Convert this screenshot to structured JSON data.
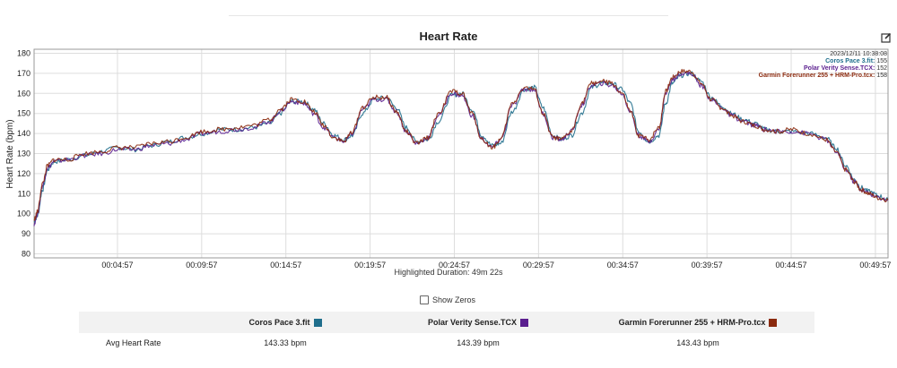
{
  "chart_data": {
    "type": "line",
    "title": "Heart Rate",
    "ylabel": "Heart Rate (bpm)",
    "xlabel": "Highlighted Duration: 49m 22s",
    "ylim": [
      78,
      182
    ],
    "xlim_minutes": [
      0,
      50.7
    ],
    "yticks": [
      80,
      90,
      100,
      110,
      120,
      130,
      140,
      150,
      160,
      170,
      180
    ],
    "xticks": [
      {
        "t": 4.95,
        "label": "00:04:57"
      },
      {
        "t": 9.95,
        "label": "00:09:57"
      },
      {
        "t": 14.95,
        "label": "00:14:57"
      },
      {
        "t": 19.95,
        "label": "00:19:57"
      },
      {
        "t": 24.95,
        "label": "00:24:57"
      },
      {
        "t": 29.95,
        "label": "00:29:57"
      },
      {
        "t": 34.95,
        "label": "00:34:57"
      },
      {
        "t": 39.95,
        "label": "00:39:57"
      },
      {
        "t": 44.95,
        "label": "00:44:57"
      },
      {
        "t": 49.95,
        "label": "00:49:57"
      }
    ],
    "grid": true,
    "legend_position": "top-right",
    "legend_date": "2023/12/11 10:38:08",
    "series": [
      {
        "name": "Coros Pace 3.fit",
        "legend_value": "155",
        "color": "#1f6e8c",
        "t": [
          0,
          0.2,
          0.5,
          0.8,
          1.2,
          2,
          3,
          4,
          5,
          6,
          7,
          8,
          9,
          10,
          11,
          12,
          13,
          14,
          14.6,
          15.3,
          16,
          16.6,
          17.2,
          17.8,
          18.4,
          18.9,
          19.5,
          20.2,
          20.9,
          21.5,
          22.1,
          22.7,
          23.4,
          24,
          24.8,
          25.4,
          26,
          26.6,
          27.2,
          27.7,
          28.4,
          29.1,
          29.7,
          30.2,
          30.8,
          31.3,
          31.9,
          32.5,
          33.1,
          33.7,
          34.3,
          34.9,
          35.4,
          35.9,
          36.5,
          37.1,
          37.5,
          37.9,
          38.4,
          39,
          39.6,
          40.2,
          40.8,
          41.4,
          42.1,
          42.8,
          43.4,
          44.2,
          45,
          46,
          47,
          47.6,
          48.2,
          48.7,
          49.1,
          49.6,
          50.1,
          50.7
        ],
        "values": [
          96,
          99,
          112,
          122,
          126,
          127,
          129,
          131,
          133,
          132,
          134,
          136,
          138,
          140,
          142,
          142,
          143,
          145,
          150,
          156,
          156,
          152,
          145,
          139,
          137,
          139,
          150,
          157,
          158,
          153,
          143,
          136,
          137,
          146,
          159,
          160,
          152,
          139,
          134,
          135,
          151,
          162,
          163,
          153,
          139,
          137,
          139,
          150,
          163,
          165,
          165,
          162,
          155,
          141,
          136,
          139,
          155,
          165,
          169,
          170,
          166,
          158,
          154,
          150,
          147,
          145,
          142,
          141,
          141,
          140,
          138,
          133,
          124,
          117,
          113,
          111,
          109,
          107
        ]
      },
      {
        "name": "Polar Verity Sense.TCX",
        "legend_value": "152",
        "color": "#5b1f8f",
        "t": [
          0,
          0.2,
          0.5,
          0.8,
          1.2,
          2,
          3,
          4,
          5,
          6,
          7,
          8,
          9,
          10,
          11,
          12,
          13,
          14,
          14.6,
          15.3,
          16,
          16.6,
          17.2,
          17.8,
          18.4,
          18.9,
          19.5,
          20.2,
          20.9,
          21.5,
          22.1,
          22.7,
          23.4,
          24,
          24.8,
          25.4,
          26,
          26.6,
          27.2,
          27.7,
          28.4,
          29.1,
          29.7,
          30.2,
          30.8,
          31.3,
          31.9,
          32.5,
          33.1,
          33.7,
          34.3,
          34.9,
          35.4,
          35.9,
          36.5,
          37.1,
          37.5,
          37.9,
          38.4,
          39,
          39.6,
          40.2,
          40.8,
          41.4,
          42.1,
          42.8,
          43.4,
          44.2,
          45,
          46,
          47,
          47.6,
          48.2,
          48.7,
          49.1,
          49.6,
          50.1,
          50.7
        ],
        "values": [
          95,
          100,
          114,
          123,
          126,
          127,
          129,
          130,
          132,
          132,
          134,
          135,
          137,
          140,
          141,
          142,
          143,
          146,
          151,
          156,
          155,
          150,
          143,
          138,
          136,
          140,
          152,
          157,
          157,
          151,
          141,
          135,
          138,
          149,
          160,
          159,
          149,
          137,
          133,
          137,
          154,
          162,
          162,
          150,
          138,
          137,
          141,
          154,
          164,
          165,
          164,
          160,
          151,
          139,
          136,
          142,
          160,
          167,
          170,
          170,
          164,
          157,
          153,
          149,
          146,
          144,
          142,
          141,
          141,
          140,
          137,
          131,
          122,
          116,
          112,
          110,
          108,
          107
        ]
      },
      {
        "name": "Garmin Forerunner 255 + HRM-Pro.tcx",
        "legend_value": "158",
        "color": "#8b2a0e",
        "t": [
          0,
          0.2,
          0.5,
          0.8,
          1.2,
          2,
          3,
          4,
          5,
          6,
          7,
          8,
          9,
          10,
          11,
          12,
          13,
          14,
          14.6,
          15.3,
          16,
          16.6,
          17.2,
          17.8,
          18.4,
          18.9,
          19.5,
          20.2,
          20.9,
          21.5,
          22.1,
          22.7,
          23.4,
          24,
          24.8,
          25.4,
          26,
          26.6,
          27.2,
          27.7,
          28.4,
          29.1,
          29.7,
          30.2,
          30.8,
          31.3,
          31.9,
          32.5,
          33.1,
          33.7,
          34.3,
          34.9,
          35.4,
          35.9,
          36.5,
          37.1,
          37.5,
          37.9,
          38.4,
          39,
          39.6,
          40.2,
          40.8,
          41.4,
          42.1,
          42.8,
          43.4,
          44.2,
          45,
          46,
          47,
          47.6,
          48.2,
          48.7,
          49.1,
          49.6,
          50.1,
          50.7
        ],
        "values": [
          97,
          101,
          115,
          124,
          127,
          127,
          130,
          131,
          133,
          133,
          135,
          136,
          138,
          141,
          142,
          143,
          144,
          147,
          152,
          157,
          156,
          151,
          144,
          138,
          136,
          141,
          153,
          158,
          158,
          151,
          141,
          135,
          138,
          150,
          161,
          160,
          150,
          137,
          133,
          137,
          155,
          163,
          162,
          150,
          138,
          137,
          141,
          155,
          165,
          166,
          165,
          160,
          151,
          139,
          137,
          143,
          161,
          168,
          171,
          171,
          165,
          157,
          153,
          149,
          146,
          144,
          142,
          141,
          142,
          140,
          137,
          131,
          122,
          116,
          112,
          110,
          108,
          107
        ]
      }
    ]
  },
  "controls": {
    "show_zeros_label": "Show Zeros",
    "show_zeros_checked": false
  },
  "stats_table": {
    "columns": [
      "Coros Pace 3.fit",
      "Polar Verity Sense.TCX",
      "Garmin Forerunner 255 + HRM-Pro.tcx"
    ],
    "column_colors": [
      "#1f6e8c",
      "#5b1f8f",
      "#8b2a0e"
    ],
    "rows": [
      {
        "label": "Avg Heart Rate",
        "values": [
          "143.33 bpm",
          "143.39 bpm",
          "143.43 bpm"
        ]
      }
    ]
  }
}
